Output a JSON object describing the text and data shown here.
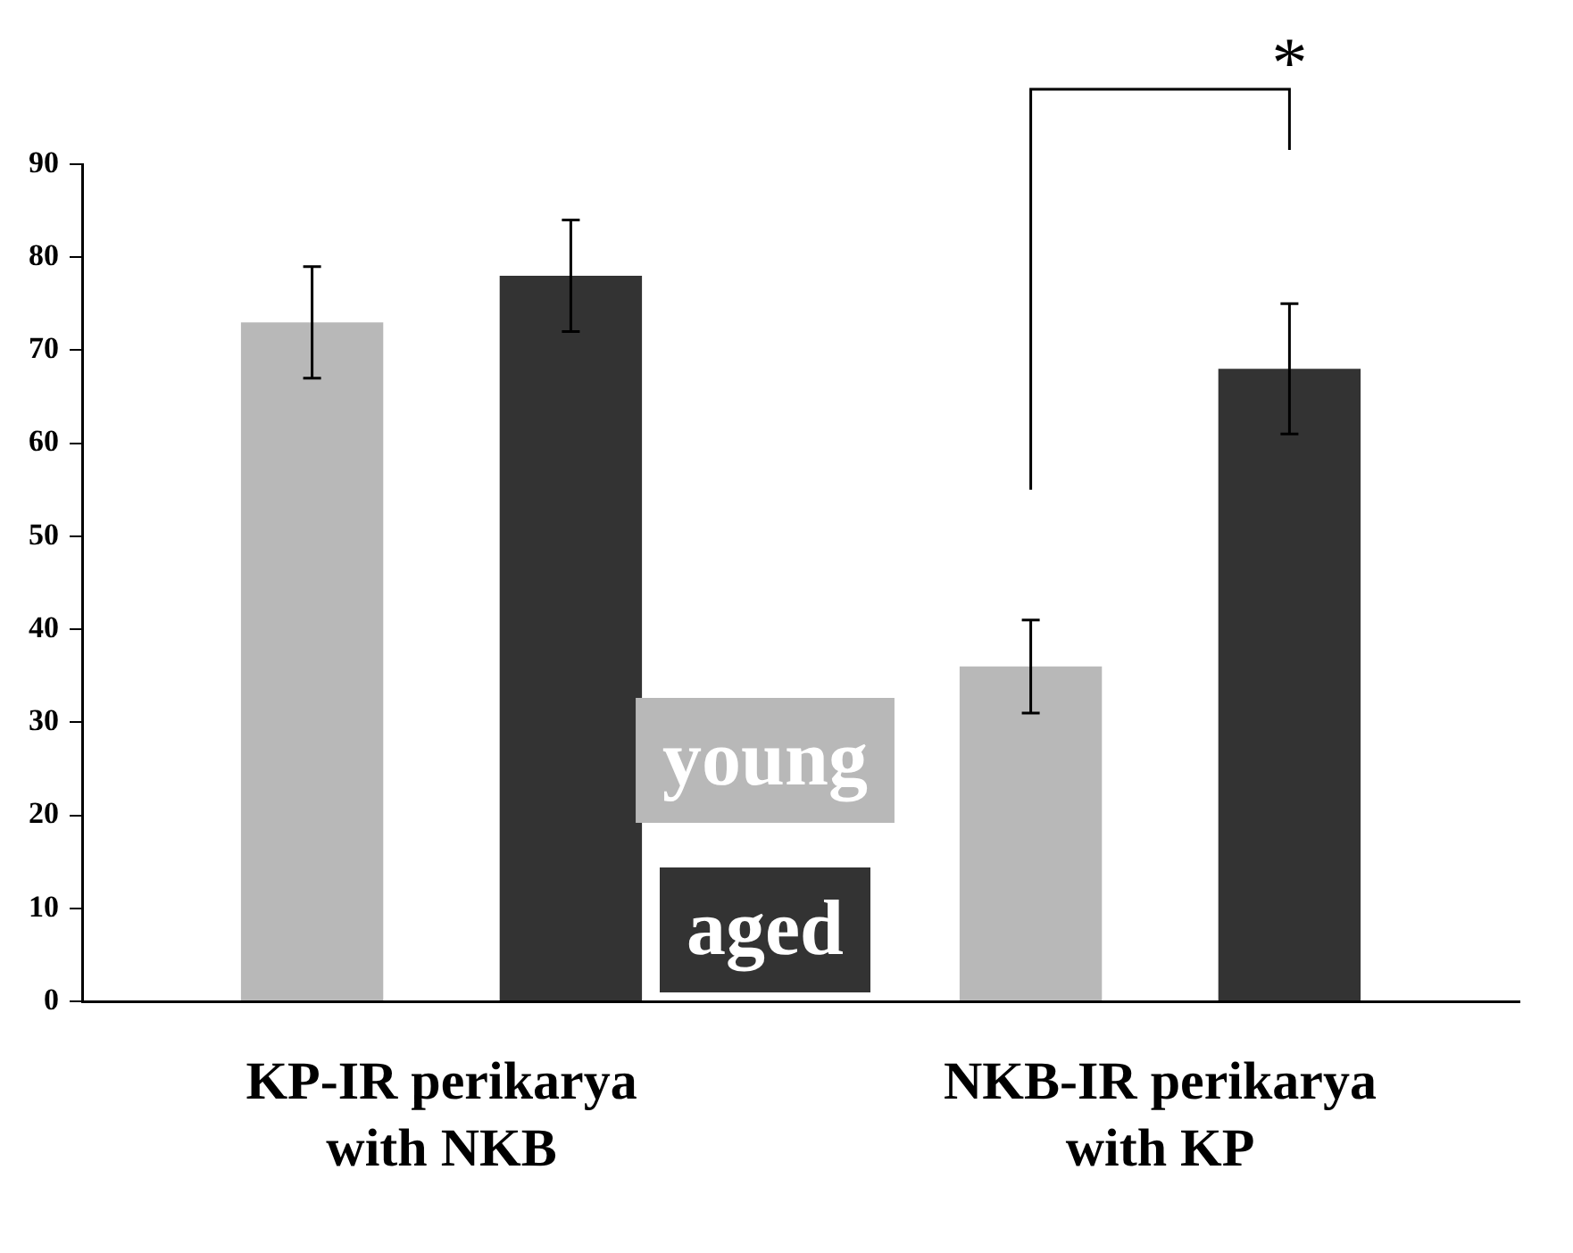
{
  "chart_data": {
    "type": "bar",
    "categories": [
      "KP-IR perikarya with NKB",
      "NKB-IR perikarya with KP"
    ],
    "series": [
      {
        "name": "young",
        "color": "#b8b8b8",
        "values": [
          73,
          36
        ],
        "errors": [
          6,
          5
        ]
      },
      {
        "name": "aged",
        "color": "#333333",
        "values": [
          78,
          68
        ],
        "errors": [
          6,
          7
        ]
      }
    ],
    "ylim": [
      0,
      90
    ],
    "yticks": [
      0,
      10,
      20,
      30,
      40,
      50,
      60,
      70,
      80,
      90
    ],
    "grid": false,
    "legend": "bottom",
    "annotations": [
      "*"
    ]
  }
}
